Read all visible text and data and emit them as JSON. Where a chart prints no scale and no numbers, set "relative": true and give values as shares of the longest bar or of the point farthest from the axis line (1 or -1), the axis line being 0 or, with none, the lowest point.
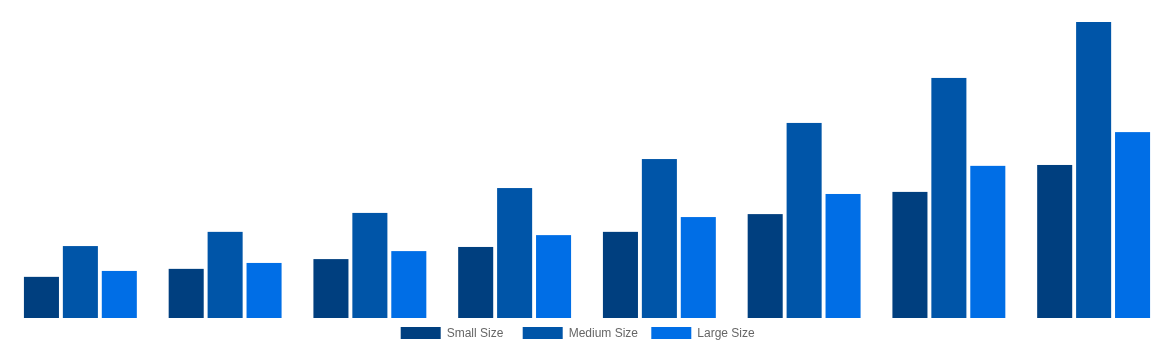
{
  "chart_data": {
    "type": "bar",
    "relative": true,
    "categories": [
      null,
      null,
      null,
      null,
      null,
      null,
      null,
      null
    ],
    "legend": "bottom",
    "series": [
      {
        "name": "Small Size",
        "color": "#003f7f",
        "values": [
          0.139,
          0.166,
          0.199,
          0.24,
          0.291,
          0.351,
          0.426,
          0.517
        ]
      },
      {
        "name": "Medium Size",
        "color": "#0055a8",
        "values": [
          0.243,
          0.291,
          0.355,
          0.439,
          0.537,
          0.659,
          0.811,
          1
        ]
      },
      {
        "name": "Large Size",
        "color": "#006ee6",
        "values": [
          0.159,
          0.186,
          0.226,
          0.28,
          0.341,
          0.419,
          0.514,
          0.628
        ]
      }
    ]
  }
}
